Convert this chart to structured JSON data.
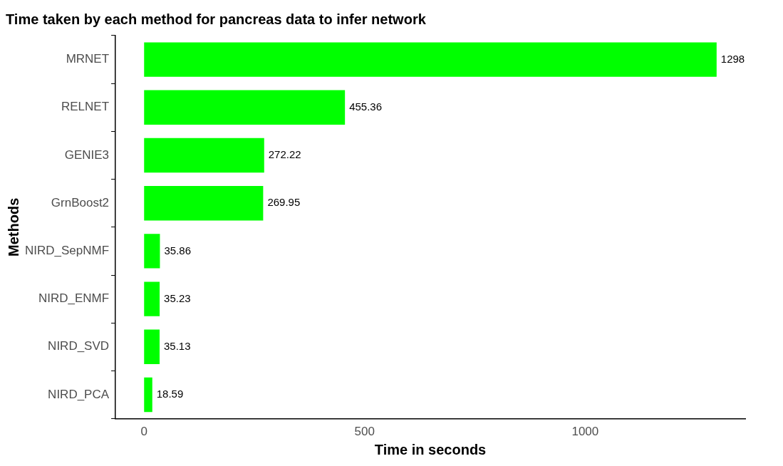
{
  "chart_data": {
    "type": "bar",
    "orientation": "horizontal",
    "title": "Time taken by each method for pancreas data to infer network",
    "xlabel": "Time in seconds",
    "ylabel": "Methods",
    "categories": [
      "MRNET",
      "RELNET",
      "GENIE3",
      "GrnBoost2",
      "NIRD_SepNMF",
      "NIRD_ENMF",
      "NIRD_SVD",
      "NIRD_PCA"
    ],
    "values": [
      1298,
      455.36,
      272.22,
      269.95,
      35.86,
      35.23,
      35.13,
      18.59
    ],
    "value_labels": [
      "1298",
      "455.36",
      "272.22",
      "269.95",
      "35.86",
      "35.23",
      "35.13",
      "18.59"
    ],
    "color": "#00ff00",
    "xlim": [
      -64.9,
      1362.9
    ],
    "xticks": [
      0,
      500,
      1000
    ],
    "grid": false,
    "legend": false
  }
}
